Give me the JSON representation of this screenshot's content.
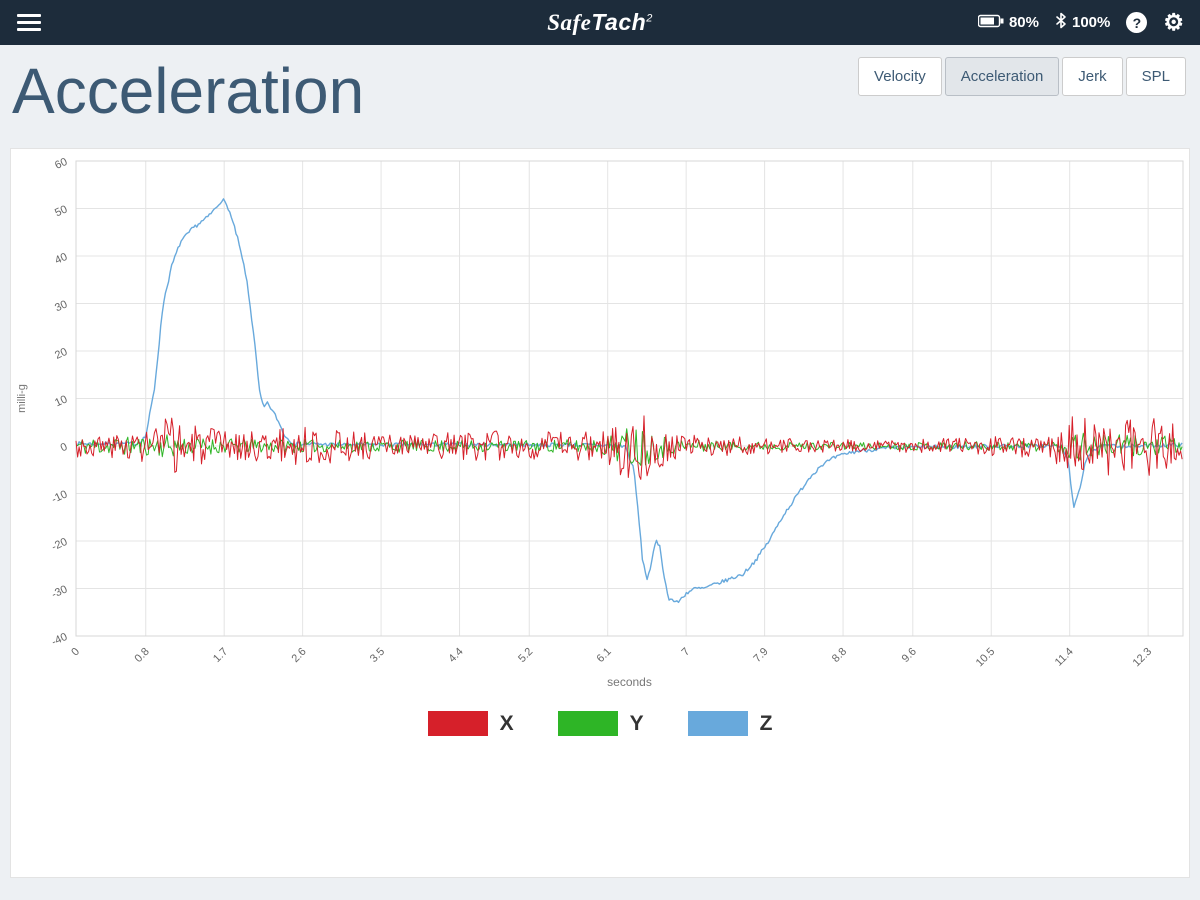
{
  "topbar": {
    "logo": {
      "part1": "Safe",
      "part2": "Tach",
      "sup": "2"
    },
    "battery_label": "80%",
    "bluetooth_label": "100%",
    "help_glyph": "?",
    "gear_glyph": "⚙"
  },
  "header": {
    "title": "Acceleration"
  },
  "tabs": [
    {
      "label": "Velocity",
      "active": false
    },
    {
      "label": "Acceleration",
      "active": true
    },
    {
      "label": "Jerk",
      "active": false
    },
    {
      "label": "SPL",
      "active": false
    }
  ],
  "chart_data": {
    "type": "line",
    "title": "",
    "xlabel": "seconds",
    "ylabel": "milli-g",
    "xlim": [
      0,
      12.7
    ],
    "ylim": [
      -40,
      60
    ],
    "xticks": [
      0,
      0.8,
      1.7,
      2.6,
      3.5,
      4.4,
      5.2,
      6.1,
      7,
      7.9,
      8.8,
      9.6,
      10.5,
      11.4,
      12.3
    ],
    "yticks": [
      60,
      50,
      40,
      30,
      20,
      10,
      0,
      -10,
      -20,
      -30,
      -40
    ],
    "grid": true,
    "legend_position": "bottom",
    "legend": [
      {
        "name": "X",
        "color": "#d6202a"
      },
      {
        "name": "Y",
        "color": "#2eb526"
      },
      {
        "name": "Z",
        "color": "#68a9dc"
      }
    ],
    "series": [
      {
        "name": "Z",
        "color": "#68a9dc",
        "width": 1.4,
        "seed": 7,
        "keypoints": [
          [
            0,
            0.5
          ],
          [
            0.7,
            0.5
          ],
          [
            0.8,
            2
          ],
          [
            0.9,
            12
          ],
          [
            1.0,
            30
          ],
          [
            1.1,
            38
          ],
          [
            1.2,
            43
          ],
          [
            1.35,
            46
          ],
          [
            1.5,
            48
          ],
          [
            1.6,
            50
          ],
          [
            1.68,
            52
          ],
          [
            1.75,
            50
          ],
          [
            1.85,
            44
          ],
          [
            1.95,
            36
          ],
          [
            2.05,
            22
          ],
          [
            2.1,
            12
          ],
          [
            2.15,
            8
          ],
          [
            2.2,
            9
          ],
          [
            2.3,
            6
          ],
          [
            2.4,
            2
          ],
          [
            2.5,
            0.5
          ],
          [
            3.0,
            0.3
          ],
          [
            4.0,
            0.3
          ],
          [
            5.0,
            0.3
          ],
          [
            6.0,
            0.2
          ],
          [
            6.3,
            0
          ],
          [
            6.4,
            -5
          ],
          [
            6.45,
            -14
          ],
          [
            6.5,
            -24
          ],
          [
            6.55,
            -28
          ],
          [
            6.6,
            -25
          ],
          [
            6.65,
            -20
          ],
          [
            6.7,
            -21
          ],
          [
            6.75,
            -28
          ],
          [
            6.8,
            -32
          ],
          [
            6.9,
            -33
          ],
          [
            7.0,
            -31
          ],
          [
            7.1,
            -30
          ],
          [
            7.2,
            -30
          ],
          [
            7.35,
            -29
          ],
          [
            7.5,
            -28
          ],
          [
            7.65,
            -27
          ],
          [
            7.8,
            -24
          ],
          [
            7.95,
            -20
          ],
          [
            8.1,
            -15
          ],
          [
            8.25,
            -11
          ],
          [
            8.4,
            -7
          ],
          [
            8.55,
            -4
          ],
          [
            8.7,
            -2.5
          ],
          [
            8.85,
            -1.5
          ],
          [
            9.0,
            -1
          ],
          [
            9.3,
            -0.5
          ],
          [
            9.6,
            -0.3
          ],
          [
            10.0,
            -0.2
          ],
          [
            10.5,
            0
          ],
          [
            11.0,
            0
          ],
          [
            11.3,
            0
          ],
          [
            11.38,
            -3
          ],
          [
            11.45,
            -13
          ],
          [
            11.52,
            -9
          ],
          [
            11.58,
            -3
          ],
          [
            11.65,
            -1
          ],
          [
            11.8,
            0
          ],
          [
            12.2,
            0
          ],
          [
            12.7,
            0.3
          ]
        ],
        "noise_envelope": [
          [
            0,
            0.4
          ],
          [
            12.7,
            0.4
          ]
        ]
      },
      {
        "name": "Y",
        "color": "#2eb526",
        "width": 1,
        "seed": 11,
        "keypoints": [
          [
            0,
            0
          ],
          [
            12.7,
            0
          ]
        ],
        "noise_envelope": [
          [
            0,
            1.8
          ],
          [
            0.8,
            2
          ],
          [
            1.0,
            2.5
          ],
          [
            1.4,
            1.8
          ],
          [
            2.0,
            1.5
          ],
          [
            3.0,
            1.3
          ],
          [
            4.0,
            1.3
          ],
          [
            5.0,
            1.2
          ],
          [
            6.0,
            1.5
          ],
          [
            6.25,
            3.5
          ],
          [
            6.45,
            5
          ],
          [
            6.65,
            3
          ],
          [
            6.9,
            1.5
          ],
          [
            7.5,
            1
          ],
          [
            8.5,
            0.8
          ],
          [
            9.5,
            0.8
          ],
          [
            10.5,
            1
          ],
          [
            11.2,
            1.2
          ],
          [
            11.45,
            3.5
          ],
          [
            11.7,
            2.2
          ],
          [
            12.0,
            2.5
          ],
          [
            12.3,
            2.2
          ],
          [
            12.7,
            2
          ]
        ]
      },
      {
        "name": "X",
        "color": "#d6202a",
        "width": 1,
        "seed": 3,
        "keypoints": [
          [
            0,
            0
          ],
          [
            12.7,
            0
          ]
        ],
        "noise_envelope": [
          [
            0,
            2.5
          ],
          [
            0.6,
            2.5
          ],
          [
            0.9,
            5
          ],
          [
            1.1,
            6.5
          ],
          [
            1.3,
            5
          ],
          [
            1.6,
            3.5
          ],
          [
            2.0,
            3
          ],
          [
            2.4,
            4
          ],
          [
            2.8,
            4
          ],
          [
            3.2,
            3
          ],
          [
            3.6,
            2.5
          ],
          [
            4.2,
            3
          ],
          [
            4.6,
            3.5
          ],
          [
            5.0,
            3
          ],
          [
            5.5,
            3
          ],
          [
            5.9,
            3.5
          ],
          [
            6.15,
            5
          ],
          [
            6.35,
            7.5
          ],
          [
            6.55,
            7
          ],
          [
            6.75,
            4
          ],
          [
            7.0,
            2.5
          ],
          [
            7.5,
            2
          ],
          [
            8.0,
            1.8
          ],
          [
            8.6,
            1.5
          ],
          [
            9.2,
            1.2
          ],
          [
            9.8,
            1.5
          ],
          [
            10.4,
            2
          ],
          [
            11.0,
            2.5
          ],
          [
            11.3,
            4
          ],
          [
            11.5,
            7.5
          ],
          [
            11.7,
            5.5
          ],
          [
            11.9,
            6.5
          ],
          [
            12.1,
            5.5
          ],
          [
            12.3,
            6.5
          ],
          [
            12.5,
            5
          ],
          [
            12.7,
            5
          ]
        ]
      }
    ]
  }
}
